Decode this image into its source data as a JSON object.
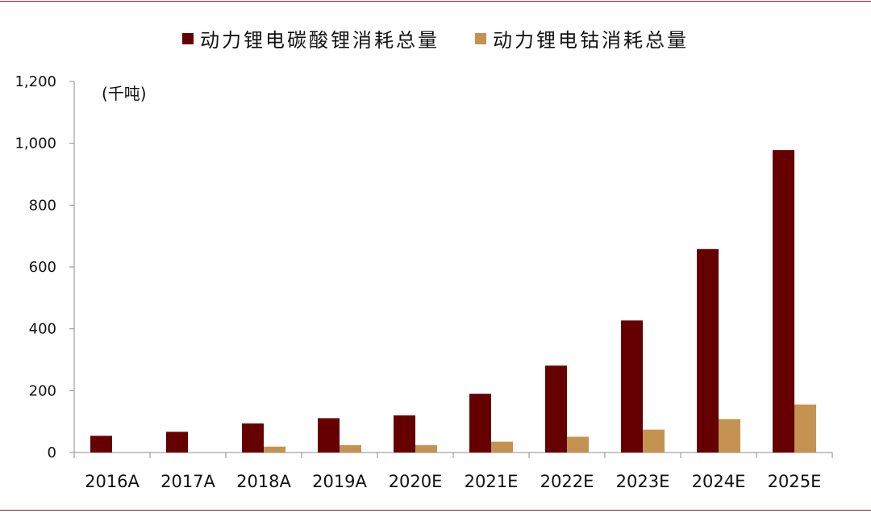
{
  "chart_data": {
    "type": "bar",
    "unit_label": "(千吨)",
    "categories": [
      "2016A",
      "2017A",
      "2018A",
      "2019A",
      "2020E",
      "2021E",
      "2022E",
      "2023E",
      "2024E",
      "2025E"
    ],
    "series": [
      {
        "name": "动力锂电碳酸锂消耗总量",
        "color": "#660000",
        "values": [
          54,
          67,
          94,
          111,
          120,
          190,
          281,
          427,
          658,
          978
        ]
      },
      {
        "name": "动力锂电钴消耗总量",
        "color": "#c49352",
        "values": [
          0,
          0,
          19,
          24,
          24,
          35,
          51,
          74,
          108,
          155
        ]
      }
    ],
    "yticks": [
      0,
      200,
      400,
      600,
      800,
      1000,
      1200
    ],
    "ytick_labels": [
      "0",
      "200",
      "400",
      "600",
      "800",
      "1,000",
      "1,200"
    ],
    "ylim": [
      0,
      1200
    ],
    "grid": false,
    "legend_position": "top-center"
  }
}
